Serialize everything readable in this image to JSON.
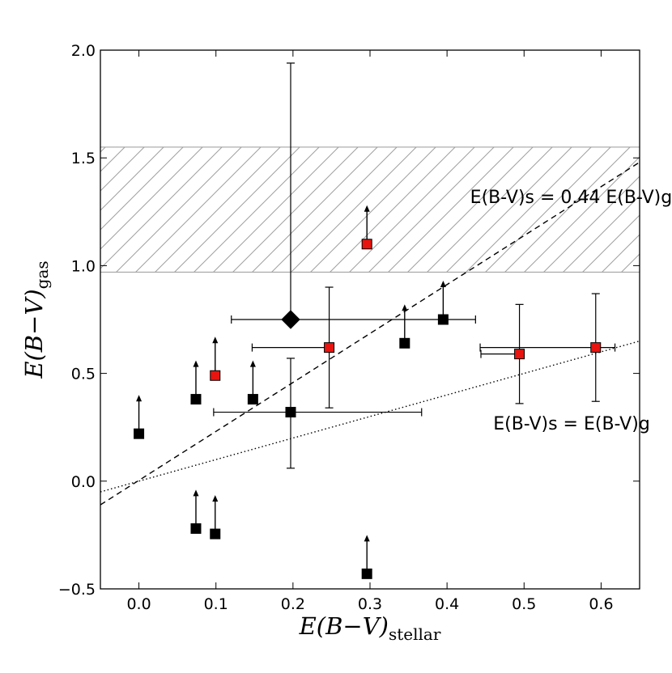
{
  "chart_data": {
    "type": "scatter",
    "title": "",
    "xlabel": "E(B−V)",
    "xlabel_sub": "stellar",
    "ylabel": "E(B−V)",
    "ylabel_sub": "gas",
    "xlim": [
      -0.05,
      0.65
    ],
    "ylim": [
      -0.5,
      2.0
    ],
    "x_ticks": [
      0.0,
      0.1,
      0.2,
      0.3,
      0.4,
      0.5,
      0.6
    ],
    "x_tick_labels": [
      "0.0",
      "0.1",
      "0.2",
      "0.3",
      "0.4",
      "0.5",
      "0.6"
    ],
    "y_ticks": [
      -0.5,
      0.0,
      0.5,
      1.0,
      1.5,
      2.0
    ],
    "y_tick_labels": [
      "−0.5",
      "0.0",
      "0.5",
      "1.0",
      "1.5",
      "2.0"
    ],
    "grid": false,
    "legend": "none",
    "hatched_band": {
      "y_low": 0.97,
      "y_high": 1.55,
      "color": "#9a9a9a"
    },
    "lines": [
      {
        "style": "dashed",
        "points": [
          [
            -0.05,
            -0.11
          ],
          [
            0.65,
            1.48
          ]
        ],
        "annotation": "E(B-V)s = 0.44 E(B-V)g",
        "annotation_at": [
          0.43,
          1.29
        ]
      },
      {
        "style": "dotted",
        "points": [
          [
            -0.05,
            -0.05
          ],
          [
            0.65,
            0.65
          ]
        ],
        "annotation": "E(B-V)s = E(B-V)g",
        "annotation_at": [
          0.46,
          0.24
        ]
      }
    ],
    "points": [
      {
        "x": 0.0,
        "y": 0.22,
        "color": "#000000",
        "arrow_up": true
      },
      {
        "x": 0.074,
        "y": 0.38,
        "color": "#000000",
        "arrow_up": true
      },
      {
        "x": 0.099,
        "y": 0.49,
        "color": "#e8140f",
        "arrow_up": true
      },
      {
        "x": 0.148,
        "y": 0.38,
        "color": "#000000",
        "arrow_up": true
      },
      {
        "x": 0.074,
        "y": -0.22,
        "color": "#000000",
        "arrow_up": true
      },
      {
        "x": 0.099,
        "y": -0.245,
        "color": "#000000",
        "arrow_up": true
      },
      {
        "x": 0.296,
        "y": -0.43,
        "color": "#000000",
        "arrow_up": true
      },
      {
        "x": 0.296,
        "y": 1.1,
        "color": "#e8140f",
        "arrow_up": true
      },
      {
        "x": 0.345,
        "y": 0.64,
        "color": "#000000",
        "arrow_up": true
      },
      {
        "x": 0.395,
        "y": 0.75,
        "color": "#000000",
        "arrow_up": true
      },
      {
        "x": 0.197,
        "y": 0.32,
        "color": "#000000",
        "xerr": [
          0.1,
          0.17
        ],
        "yerr": [
          0.26,
          0.25
        ]
      },
      {
        "x": 0.247,
        "y": 0.62,
        "color": "#e8140f",
        "xerr": [
          0.1,
          0.0
        ],
        "yerr": [
          0.28,
          0.28
        ]
      },
      {
        "x": 0.494,
        "y": 0.59,
        "color": "#e8140f",
        "xerr": [
          0.05,
          0.0
        ],
        "yerr": [
          0.23,
          0.23
        ]
      },
      {
        "x": 0.593,
        "y": 0.62,
        "color": "#e8140f",
        "xerr": [
          0.15,
          0.025
        ],
        "yerr": [
          0.25,
          0.25
        ]
      }
    ],
    "diamond": {
      "x": 0.197,
      "y": 0.75,
      "color": "#000000",
      "xerr": [
        0.077,
        0.24
      ],
      "yerr": [
        0.0,
        1.19
      ]
    }
  }
}
